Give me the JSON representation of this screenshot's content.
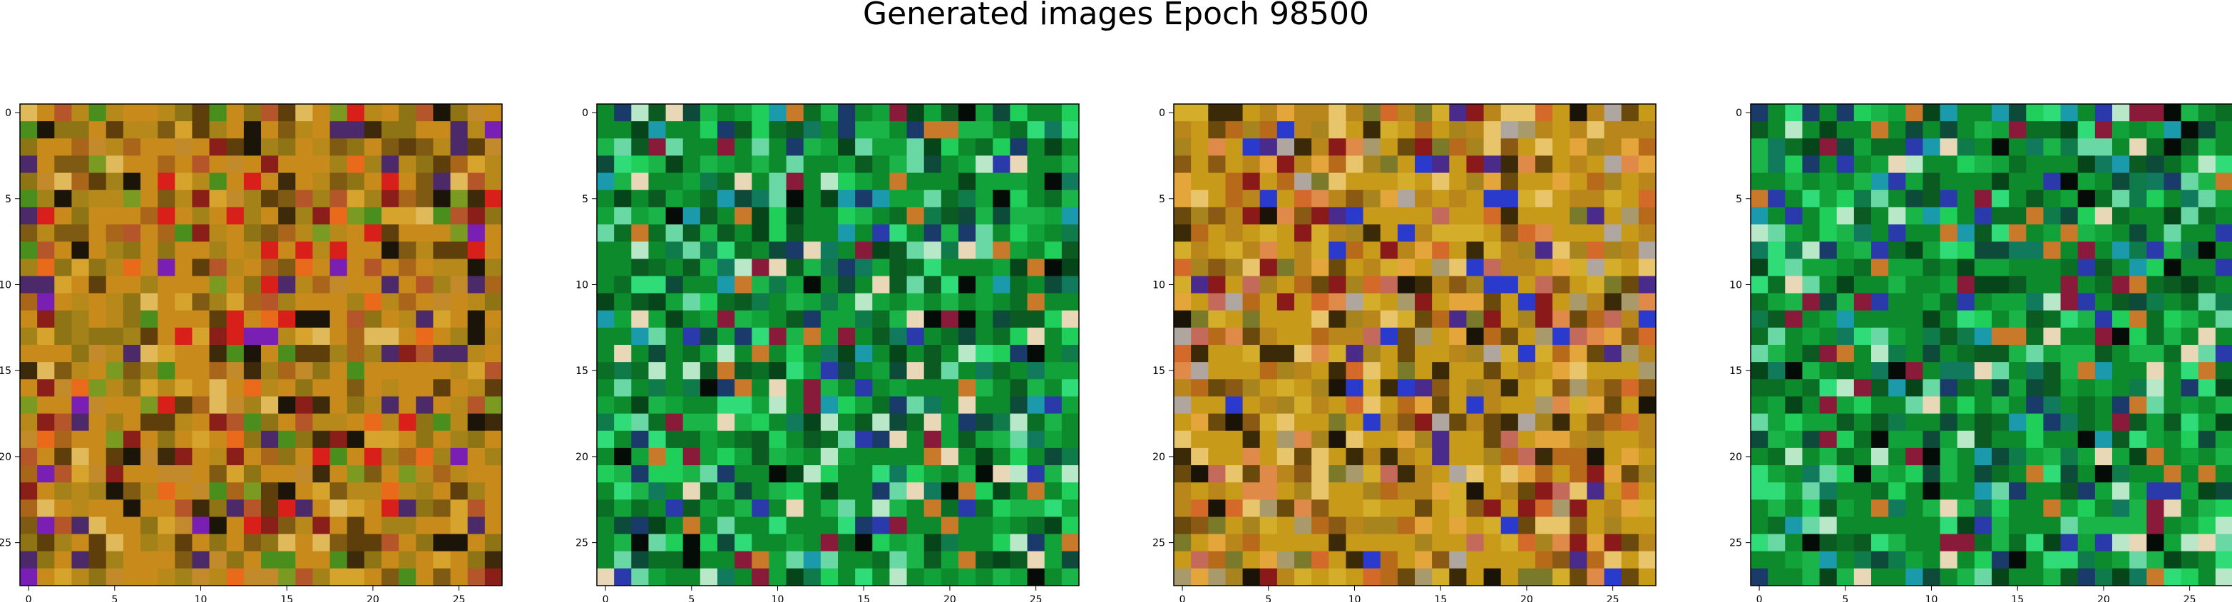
{
  "title": "Generated images Epoch 98500",
  "chart_data": [
    {
      "type": "heatmap",
      "title": "",
      "xlabel": "",
      "ylabel": "",
      "xlim": [
        -0.5,
        27.5
      ],
      "ylim": [
        27.5,
        -0.5
      ],
      "xticks": [
        0,
        5,
        10,
        15,
        20,
        25
      ],
      "yticks": [
        0,
        5,
        10,
        15,
        20,
        25
      ],
      "grid": false,
      "grid_size": [
        28,
        28
      ],
      "palette": [
        "#c98a1c",
        "#b7891a",
        "#a3821a",
        "#8f7416",
        "#d6a42c",
        "#c28a2a",
        "#a9651a",
        "#7f5a12",
        "#5e3e0a",
        "#e0b95a",
        "#b5562a",
        "#8a1f1a",
        "#4a8f1e",
        "#7a9a22",
        "#3d2a0a",
        "#1b1408",
        "#e86a1a",
        "#d91f1a",
        "#7a1fb3",
        "#4c2a6a"
      ],
      "note": "random-looking 28x28 RGB noise, dominant warm olive/orange/brown tones"
    },
    {
      "type": "heatmap",
      "title": "",
      "xlabel": "",
      "ylabel": "",
      "xlim": [
        -0.5,
        27.5
      ],
      "ylim": [
        27.5,
        -0.5
      ],
      "xticks": [
        0,
        5,
        10,
        15,
        20,
        25
      ],
      "yticks": [
        0,
        5,
        10,
        15,
        20,
        25
      ],
      "grid": false,
      "grid_size": [
        28,
        28
      ],
      "palette": [
        "#0c8a2c",
        "#11a23a",
        "#1bb449",
        "#0a6e24",
        "#0b5a22",
        "#06451a",
        "#1fcf5a",
        "#2fdc78",
        "#6ad8a4",
        "#b8e8c8",
        "#0f7a4a",
        "#127a5c",
        "#0e4a3a",
        "#1a3a6a",
        "#c87a2a",
        "#2a3aaa",
        "#8a1a3a",
        "#e8d8b8",
        "#050c08",
        "#1a9aaa"
      ],
      "note": "random-looking 28x28 RGB noise, dominant green tones"
    },
    {
      "type": "heatmap",
      "title": "",
      "xlabel": "",
      "ylabel": "",
      "xlim": [
        -0.5,
        27.5
      ],
      "ylim": [
        27.5,
        -0.5
      ],
      "xticks": [
        0,
        5,
        10,
        15,
        20,
        25
      ],
      "yticks": [
        0,
        5,
        10,
        15,
        20,
        25
      ],
      "grid": false,
      "grid_size": [
        28,
        28
      ],
      "palette": [
        "#c89a1a",
        "#b8861a",
        "#a8841e",
        "#d4ae2a",
        "#e4a63a",
        "#b76a1a",
        "#8a5a14",
        "#6a4a0c",
        "#3a2a08",
        "#e8c46a",
        "#b0a6a0",
        "#8a1a1a",
        "#2a3acc",
        "#d46a2a",
        "#1a1408",
        "#a89a6a",
        "#7a7a2a",
        "#c46a5a",
        "#4a2a8a",
        "#e08a4a"
      ],
      "note": "random-looking 28x28 RGB noise, dominant yellow/orange/brown tones"
    },
    {
      "type": "heatmap",
      "title": "",
      "xlabel": "",
      "ylabel": "",
      "xlim": [
        -0.5,
        27.5
      ],
      "ylim": [
        27.5,
        -0.5
      ],
      "xticks": [
        0,
        5,
        10,
        15,
        20,
        25
      ],
      "yticks": [
        0,
        5,
        10,
        15,
        20,
        25
      ],
      "grid": false,
      "grid_size": [
        28,
        28
      ],
      "palette": [
        "#0c8a2c",
        "#11a23a",
        "#1bb449",
        "#0a6e24",
        "#0b5a22",
        "#06451a",
        "#1fcf5a",
        "#2fdc78",
        "#6ad8a4",
        "#b8e8c8",
        "#0f7a4a",
        "#127a5c",
        "#0e4a3a",
        "#1a3a6a",
        "#c87a2a",
        "#2a3aaa",
        "#8a1a3a",
        "#e8d8b8",
        "#050c08",
        "#1a9aaa"
      ],
      "note": "random-looking 28x28 RGB noise, dominant green tones"
    }
  ]
}
